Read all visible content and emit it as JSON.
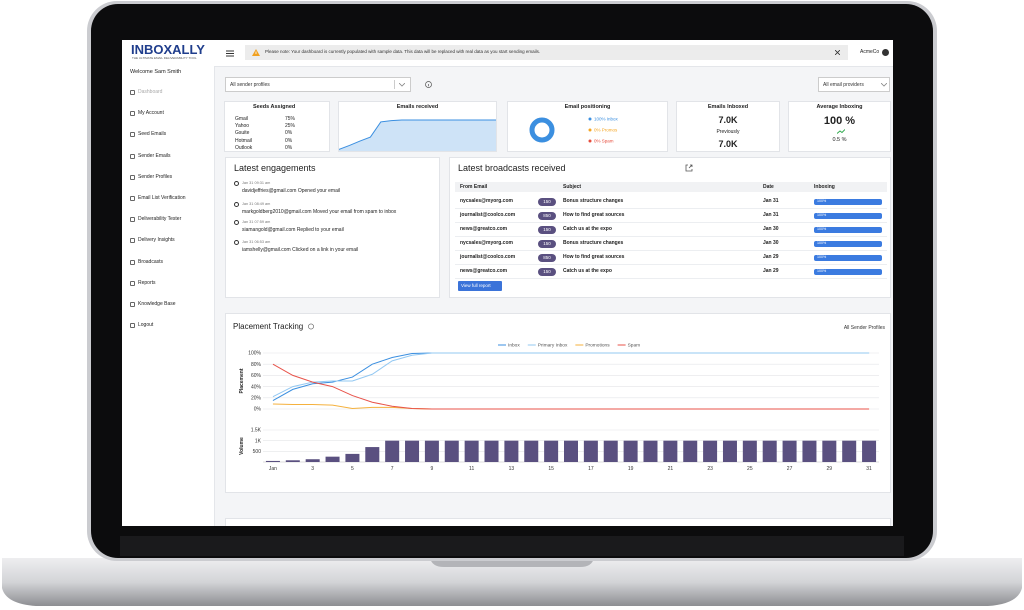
{
  "header": {
    "logo": "INBOXALLY",
    "tagline": "THE ULTIMATE EMAIL DELIVERABILITY TOOL",
    "notice": "Please note: Your dashboard is currently populated with sample data. This data will be replaced with real data as you start sending emails.",
    "account": "AcmeCo"
  },
  "sidebar": {
    "welcome": "Welcome Sam Smith",
    "items": [
      "Dashboard",
      "My Account",
      "Seed Emails",
      "Sender Emails",
      "Sender Profiles",
      "Email List Verification",
      "Deliverability Tester",
      "Delivery Insights",
      "Broadcasts",
      "Reports",
      "Knowledge Base",
      "Logout"
    ]
  },
  "filters": {
    "profile": "All sender profiles",
    "provider": "All email providers"
  },
  "seeds": {
    "title": "Seeds Assigned",
    "rows": [
      [
        "Gmail",
        "75%"
      ],
      [
        "Yahoo",
        "25%"
      ],
      [
        "Gsuite",
        "0%"
      ],
      [
        "Hotmail",
        "0%"
      ],
      [
        "Outlook",
        "0%"
      ]
    ]
  },
  "emails_received": {
    "title": "Emails received",
    "type": "area",
    "values": [
      5,
      18,
      32,
      45,
      94,
      98,
      100,
      100,
      100,
      100,
      100,
      100,
      100,
      100,
      100,
      100
    ],
    "ylim": [
      0,
      100
    ],
    "color": "#3b8fe0"
  },
  "positioning": {
    "title": "Email positioning",
    "type": "donut",
    "segments": [
      {
        "name": "Inbox",
        "value": 100,
        "label": "100% Inbox",
        "color": "#3b8fe0"
      },
      {
        "name": "Promos",
        "value": 0,
        "label": "0% Promos",
        "color": "#f5a623"
      },
      {
        "name": "Spam",
        "value": 0,
        "label": "0% Spam",
        "color": "#e74c3c"
      }
    ]
  },
  "inboxed": {
    "title": "Emails Inboxed",
    "value": "7.0K",
    "previous_title": "Previously",
    "previous": "7.0K"
  },
  "average": {
    "title": "Average Inboxing",
    "value": "100 %",
    "change": "0.5 %"
  },
  "engagements": {
    "title": "Latest engagements",
    "items": [
      {
        "time": "Jan 31 09:31 am",
        "text": "davidjeffries@gmail.com Opened your email"
      },
      {
        "time": "Jan 31 08:49 am",
        "text": "markgoldberg2010@gmail.com Moved your email from spam to inbox"
      },
      {
        "time": "Jan 31 07:59 am",
        "text": "siamangold@gmail.com Replied to your email"
      },
      {
        "time": "Jan 31 06:53 am",
        "text": "iamshelly@gmail.com Clicked on a link in your email"
      }
    ]
  },
  "broadcasts": {
    "title": "Latest broadcasts received",
    "columns": [
      "From Email",
      "Subject",
      "Date",
      "Inboxing"
    ],
    "rows": [
      {
        "from": "nycsales@myorg.com",
        "count": "150",
        "subject": "Bonus structure changes",
        "date": "Jan 31",
        "inboxing": "100%"
      },
      {
        "from": "journalist@coolco.com",
        "count": "850",
        "subject": "How to find great sources",
        "date": "Jan 31",
        "inboxing": "100%"
      },
      {
        "from": "news@greatco.com",
        "count": "150",
        "subject": "Catch us at the expo",
        "date": "Jan 30",
        "inboxing": "100%"
      },
      {
        "from": "nycsales@myorg.com",
        "count": "150",
        "subject": "Bonus structure changes",
        "date": "Jan 30",
        "inboxing": "100%"
      },
      {
        "from": "journalist@coolco.com",
        "count": "850",
        "subject": "How to find great sources",
        "date": "Jan 29",
        "inboxing": "100%"
      },
      {
        "from": "news@greatco.com",
        "count": "150",
        "subject": "Catch us at the expo",
        "date": "Jan 29",
        "inboxing": "100%"
      }
    ],
    "button": "View full report"
  },
  "placement": {
    "title": "Placement Tracking",
    "filter": "All Sender Profiles",
    "chart_data": [
      {
        "type": "line",
        "y_label": "Placement",
        "x": [
          1,
          2,
          3,
          4,
          5,
          6,
          7,
          8,
          9,
          10,
          11,
          12,
          13,
          14,
          15,
          16,
          17,
          18,
          19,
          20,
          21,
          22,
          23,
          24,
          25,
          26,
          27,
          28,
          29,
          30,
          31
        ],
        "xlim": [
          0.5,
          31.5
        ],
        "ylim": [
          0,
          100
        ],
        "yticks": [
          {
            "value": 0,
            "label": "0%"
          },
          {
            "value": 20,
            "label": "20%"
          },
          {
            "value": 40,
            "label": "40%"
          },
          {
            "value": 60,
            "label": "60%"
          },
          {
            "value": 80,
            "label": "80%"
          },
          {
            "value": 100,
            "label": "100%"
          }
        ],
        "grid": true,
        "series": [
          {
            "name": "Inbox",
            "color": "#3b8fe0",
            "values": [
              15,
              35,
              45,
              48,
              57,
              80,
              92,
              99,
              100,
              100,
              100,
              100,
              100,
              100,
              100,
              100,
              100,
              100,
              100,
              100,
              100,
              100,
              100,
              100,
              100,
              100,
              100,
              100,
              100,
              100,
              100
            ]
          },
          {
            "name": "Primary Inbox",
            "color": "#93c8f2",
            "values": [
              22,
              40,
              48,
              50,
              50,
              62,
              86,
              96,
              100,
              100,
              100,
              100,
              100,
              100,
              100,
              100,
              100,
              100,
              100,
              100,
              100,
              100,
              100,
              100,
              100,
              100,
              100,
              100,
              100,
              100,
              100
            ]
          },
          {
            "name": "Promotions",
            "color": "#f5b13d",
            "values": [
              9,
              8,
              8,
              7,
              1,
              3,
              3,
              1,
              0,
              0,
              0,
              0,
              0,
              0,
              0,
              0,
              0,
              0,
              0,
              0,
              0,
              0,
              0,
              0,
              0,
              0,
              0,
              0,
              0,
              0,
              0
            ]
          },
          {
            "name": "Spam",
            "color": "#e8534a",
            "values": [
              80,
              60,
              48,
              40,
              24,
              12,
              5,
              1,
              0,
              0,
              0,
              0,
              0,
              0,
              0,
              0,
              0,
              0,
              0,
              0,
              0,
              0,
              0,
              0,
              0,
              0,
              0,
              0,
              0,
              0,
              0
            ]
          }
        ]
      },
      {
        "type": "bar",
        "y_label": "Volume",
        "x": [
          1,
          2,
          3,
          4,
          5,
          6,
          7,
          8,
          9,
          10,
          11,
          12,
          13,
          14,
          15,
          16,
          17,
          18,
          19,
          20,
          21,
          22,
          23,
          24,
          25,
          26,
          27,
          28,
          29,
          30,
          31
        ],
        "xlim": [
          0.5,
          31.5
        ],
        "xticks": [
          {
            "value": 1,
            "label": "Jan"
          },
          3,
          5,
          7,
          9,
          11,
          13,
          15,
          17,
          19,
          21,
          23,
          25,
          27,
          29,
          31
        ],
        "ylim": [
          0,
          1500
        ],
        "yticks": [
          500,
          {
            "value": 1000,
            "label": "1K"
          },
          {
            "value": 1500,
            "label": "1.5K"
          }
        ],
        "grid": true,
        "color": "#5a5080",
        "values": [
          50,
          80,
          130,
          250,
          380,
          700,
          1000,
          1000,
          1000,
          1000,
          1000,
          1000,
          1000,
          1000,
          1000,
          1000,
          1000,
          1000,
          1000,
          1000,
          1000,
          1000,
          1000,
          1000,
          1000,
          1000,
          1000,
          1000,
          1000,
          1000,
          1000
        ]
      }
    ]
  }
}
